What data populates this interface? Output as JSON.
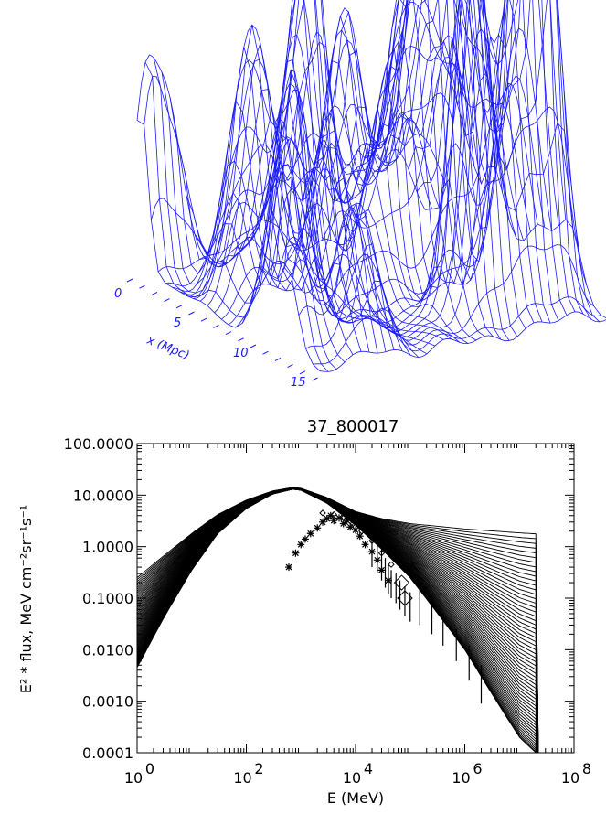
{
  "surface_plot": {
    "axis_label": "x (Mpc)",
    "ticks": [
      "0",
      "5",
      "10",
      "15"
    ],
    "line_color": "#1a1aff"
  },
  "chart_data": {
    "type": "line",
    "title": "37_800017",
    "xlabel": "E (MeV)",
    "ylabel": "E² * flux, MeV cm⁻²sr⁻¹s⁻¹",
    "x_scale": "log",
    "y_scale": "log",
    "xlim": [
      1,
      100000000
    ],
    "ylim": [
      0.0001,
      100
    ],
    "x_ticks": [
      {
        "value": 1,
        "base": "10",
        "exp": "0"
      },
      {
        "value": 100,
        "base": "10",
        "exp": "2"
      },
      {
        "value": 10000,
        "base": "10",
        "exp": "4"
      },
      {
        "value": 1000000,
        "base": "10",
        "exp": "6"
      },
      {
        "value": 100000000,
        "base": "10",
        "exp": "8"
      }
    ],
    "y_ticks": [
      {
        "value": 100,
        "label": "100.0000"
      },
      {
        "value": 10,
        "label": "10.0000"
      },
      {
        "value": 1,
        "label": "1.0000"
      },
      {
        "value": 0.1,
        "label": "0.1000"
      },
      {
        "value": 0.01,
        "label": "0.0100"
      },
      {
        "value": 0.001,
        "label": "0.0010"
      },
      {
        "value": 0.0001,
        "label": "0.0001"
      }
    ],
    "model_band": {
      "lower_envelope": [
        [
          1,
          0.0045
        ],
        [
          3,
          0.04
        ],
        [
          10,
          0.35
        ],
        [
          30,
          1.8
        ],
        [
          100,
          5.5
        ],
        [
          300,
          10.5
        ],
        [
          700,
          13
        ],
        [
          1000,
          12.5
        ],
        [
          3000,
          7
        ],
        [
          10000,
          2.6
        ],
        [
          30000,
          0.9
        ],
        [
          100000,
          0.25
        ],
        [
          300000,
          0.055
        ],
        [
          1000000,
          0.01
        ],
        [
          3000000,
          0.0015
        ],
        [
          10000000,
          0.0002
        ],
        [
          20000000,
          0.0001
        ]
      ],
      "upper_envelope": [
        [
          1,
          0.25
        ],
        [
          3,
          0.65
        ],
        [
          10,
          1.8
        ],
        [
          30,
          4.2
        ],
        [
          100,
          8
        ],
        [
          300,
          12
        ],
        [
          700,
          14
        ],
        [
          1000,
          13.5
        ],
        [
          3000,
          9
        ],
        [
          10000,
          4.8
        ],
        [
          30000,
          3.5
        ],
        [
          100000,
          2.8
        ],
        [
          1000000,
          2.2
        ],
        [
          10000000,
          1.85
        ],
        [
          100000000,
          1.6
        ]
      ],
      "curve_count": 60
    },
    "data_star": [
      [
        600,
        0.4
      ],
      [
        800,
        0.75
      ],
      [
        1000,
        1.1
      ],
      [
        1200,
        1.4
      ],
      [
        1500,
        1.8
      ],
      [
        2000,
        2.3
      ],
      [
        2500,
        3.0
      ],
      [
        3000,
        3.5
      ],
      [
        3500,
        4.0
      ],
      [
        4000,
        3.2
      ],
      [
        5000,
        3.6
      ],
      [
        6000,
        2.8
      ],
      [
        7000,
        3.2
      ],
      [
        8000,
        2.4
      ],
      [
        10000,
        2.1
      ],
      [
        12000,
        1.6
      ],
      [
        15000,
        1.1
      ],
      [
        20000,
        0.8
      ],
      [
        25000,
        0.55
      ],
      [
        30000,
        0.35
      ],
      [
        40000,
        0.22
      ]
    ],
    "data_diamond": [
      [
        2500,
        4.5
      ],
      [
        4000,
        4.2
      ],
      [
        6000,
        3.6
      ],
      [
        9000,
        2.8
      ],
      [
        13000,
        2.0
      ],
      [
        20000,
        1.3
      ],
      [
        30000,
        0.75
      ],
      [
        45000,
        0.45
      ],
      [
        70000,
        0.2
      ],
      [
        80000,
        0.1
      ]
    ],
    "data_bars": [
      [
        20000,
        0.4,
        1.6
      ],
      [
        25000,
        0.3,
        1.2
      ],
      [
        30000,
        0.22,
        0.9
      ],
      [
        35000,
        0.16,
        0.6
      ],
      [
        40000,
        0.12,
        0.45
      ],
      [
        45000,
        0.1,
        0.35
      ],
      [
        55000,
        0.08,
        0.3
      ],
      [
        65000,
        0.06,
        0.22
      ],
      [
        80000,
        0.045,
        0.17
      ],
      [
        100000,
        0.035,
        0.13
      ],
      [
        150000,
        0.03,
        0.15
      ],
      [
        250000,
        0.02,
        0.09
      ],
      [
        400000,
        0.012,
        0.05
      ],
      [
        700000,
        0.006,
        0.025
      ],
      [
        1200000,
        0.0025,
        0.012
      ],
      [
        2000000,
        0.0009,
        0.005
      ]
    ]
  }
}
